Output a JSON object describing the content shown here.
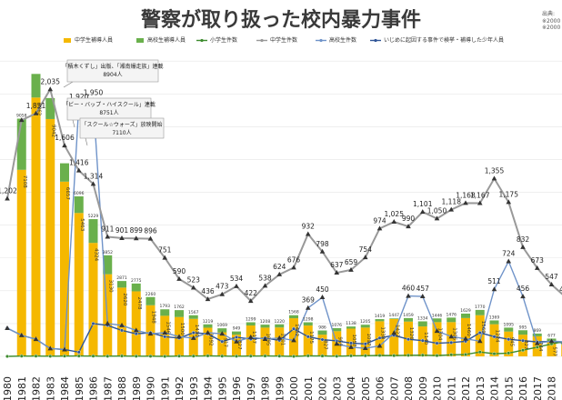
{
  "chart_data": {
    "type": "bar",
    "title": "警察が取り扱った校内暴力事件",
    "source": "出典:",
    "source_lines": [
      "※2000",
      "※2000"
    ],
    "categories": [
      "1980",
      "1981",
      "1982",
      "1983",
      "1984",
      "1985",
      "1986",
      "1987",
      "1988",
      "1989",
      "1990",
      "1991",
      "1992",
      "1993",
      "1994",
      "1995",
      "1996",
      "1997",
      "1998",
      "1999",
      "2000",
      "2001",
      "2002",
      "2003",
      "2004",
      "2005",
      "2006",
      "2007",
      "2008",
      "2009",
      "2010",
      "2011",
      "2012",
      "2013",
      "2014",
      "2015",
      "2016",
      "2017",
      "2018",
      "2019"
    ],
    "legend": [
      {
        "label": "中学生補導人員",
        "color": "#f5b800",
        "kind": "bar"
      },
      {
        "label": "高校生補導人員",
        "color": "#6ab04c",
        "kind": "bar"
      },
      {
        "label": "小学生件数",
        "color": "#3d8b2e",
        "kind": "line"
      },
      {
        "label": "中学生件数",
        "color": "#999999",
        "kind": "line"
      },
      {
        "label": "高校生件数",
        "color": "#6f93c9",
        "kind": "line"
      },
      {
        "label": "いじめに起因する事件で検挙・補導した少年人員",
        "color": "#2f5597",
        "kind": "line"
      }
    ],
    "ylim": [
      0,
      11500
    ],
    "y2lim": [
      0,
      2300
    ],
    "series": [
      {
        "name": "中学生補導人員",
        "values": [
          null,
          7108,
          9862,
          9042,
          6657,
          5463,
          4324,
          3130,
          2620,
          2478,
          1948,
          1546,
          1500,
          1430,
          1092,
          917,
          827,
          1177,
          1095,
          1101,
          1452,
          1175,
          827,
          959,
          1057,
          1097,
          1338,
          1422,
          1326,
          1140,
          1304,
          1306,
          1460,
          1569,
          1224,
          945,
          827,
          764,
          577,
          440
        ]
      },
      {
        "name": "高校生補導人員",
        "values": [
          null,
          1950,
          900,
          800,
          700,
          633,
          905,
          722,
          251,
          297,
          312,
          247,
          262,
          137,
          127,
          152,
          122,
          122,
          113,
          119,
          116,
          123,
          159,
          117,
          81,
          108,
          81,
          25,
          133,
          194,
          142,
          170,
          169,
          201,
          145,
          150,
          168,
          105,
          100,
          70
        ]
      },
      {
        "name": "中学生補導人員・高校生補導人員 合計（ラベル表示）",
        "values": [
          null,
          9058,
          null,
          null,
          null,
          6096,
          5229,
          3852,
          2871,
          2775,
          2260,
          1793,
          1762,
          1567,
          1219,
          1069,
          949,
          1299,
          1208,
          1220,
          1568,
          1298,
          986,
          1076,
          1138,
          1205,
          1419,
          1447,
          1459,
          1334,
          1446,
          1476,
          1629,
          1770,
          1369,
          1095,
          995,
          869,
          677,
          510
        ]
      },
      {
        "name": "小学生件数",
        "values": [
          0,
          2,
          2,
          1,
          2,
          3,
          2,
          1,
          3,
          1,
          1,
          0,
          2,
          2,
          4,
          2,
          1,
          2,
          3,
          2,
          0,
          4,
          3,
          1,
          4,
          5,
          7,
          6,
          8,
          9,
          6,
          12,
          14,
          33,
          20,
          25,
          47,
          70,
          95,
          115
        ]
      },
      {
        "name": "中学生件数",
        "values": [
          1202,
          1800,
          1851,
          2035,
          1606,
          1416,
          1314,
          911,
          901,
          899,
          896,
          751,
          590,
          523,
          436,
          473,
          534,
          422,
          538,
          624,
          676,
          932,
          798,
          637,
          659,
          754,
          974,
          1025,
          990,
          1101,
          1050,
          1118,
          1168,
          1167,
          1355,
          1175,
          832,
          673,
          547,
          450
        ]
      },
      {
        "name": "高校生件数",
        "values": [
          215,
          160,
          131,
          60,
          52,
          1920,
          1950,
          250,
          236,
          198,
          172,
          180,
          150,
          139,
          180,
          172,
          113,
          146,
          132,
          140,
          122,
          369,
          450,
          95,
          70,
          62,
          80,
          178,
          460,
          457,
          193,
          151,
          134,
          116,
          511,
          724,
          456,
          100,
          116,
          110
        ]
      },
      {
        "name": "いじめに起因する事件で検挙・補導した少年人員",
        "values": [
          215,
          160,
          131,
          60,
          52,
          32,
          250,
          236,
          198,
          172,
          180,
          150,
          139,
          180,
          172,
          113,
          146,
          132,
          140,
          122,
          210,
          150,
          128,
          118,
          101,
          95,
          140,
          160,
          130,
          120,
          100,
          105,
          115,
          180,
          150,
          130,
          120,
          110,
          115,
          100
        ]
      }
    ],
    "point_labels": {
      "中学生件数": [
        "1,202",
        "",
        "1,851",
        "2,035",
        "1,606",
        "1,416",
        "1,314",
        "911",
        "901",
        "899",
        "896",
        "751",
        "590",
        "523",
        "436",
        "473",
        "534",
        "422",
        "538",
        "624",
        "676",
        "932",
        "798",
        "637",
        "659",
        "754",
        "974",
        "1,025",
        "990",
        "1,101",
        "1,050",
        "1,118",
        "1,168",
        "1,167",
        "1,355",
        "1,175",
        "832",
        "673",
        "547",
        "450"
      ],
      "高校生件数": [
        "",
        "",
        "",
        "",
        "",
        "1,920",
        "1,950",
        "",
        "",
        "",
        "",
        "",
        "",
        "",
        "",
        "",
        "",
        "",
        "",
        "",
        "",
        "369",
        "450",
        "",
        "",
        "",
        "",
        "",
        "460",
        "457",
        "",
        "",
        "",
        "",
        "511",
        "724",
        "456",
        "",
        "",
        ""
      ]
    },
    "annotations": [
      {
        "lines": [
          "「積木くずし」出版、「湘南爆走族」連載",
          "8904人"
        ]
      },
      {
        "lines": [
          "「ビー・バップ・ハイスクール」連載",
          "8751人"
        ]
      },
      {
        "lines": [
          "「スクール☆ウォーズ」放映開始",
          "7110人"
        ]
      }
    ]
  }
}
